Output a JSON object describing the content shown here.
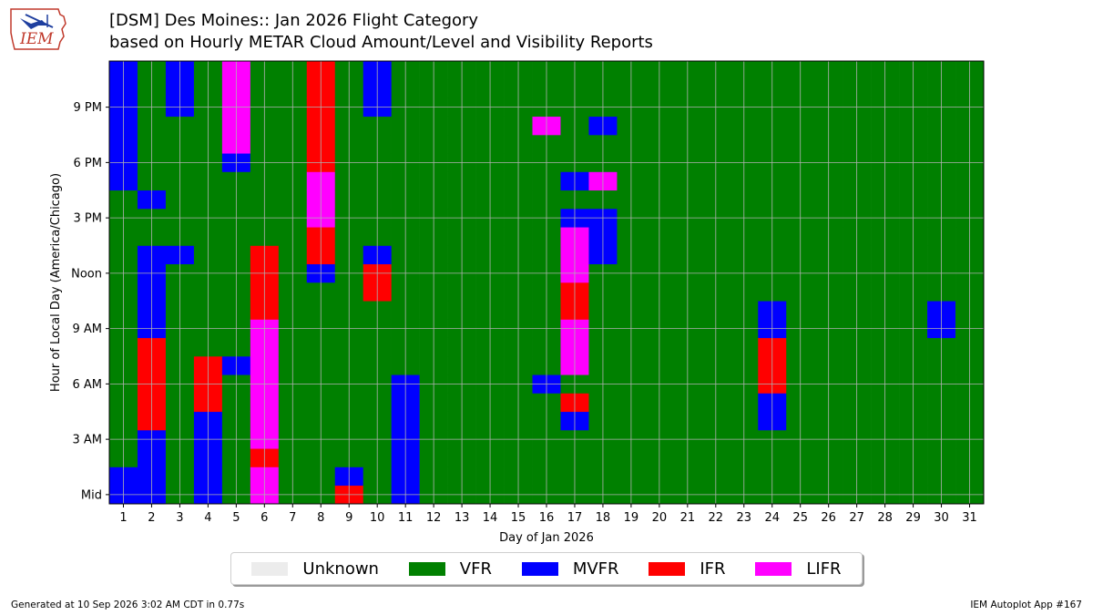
{
  "header": {
    "title_line1": "[DSM] Des Moines:: Jan 2026 Flight Category",
    "title_line2": "based on Hourly METAR Cloud Amount/Level and Visibility Reports",
    "logo_text": "IEM"
  },
  "footer": {
    "generated": "Generated at 10 Sep 2026 3:02 AM CDT in 0.77s",
    "app": "IEM Autoplot App #167"
  },
  "legend": [
    {
      "label": "Unknown",
      "color": "#ececec"
    },
    {
      "label": "VFR",
      "color": "#008000"
    },
    {
      "label": "MVFR",
      "color": "#0000ff"
    },
    {
      "label": "IFR",
      "color": "#ff0000"
    },
    {
      "label": "LIFR",
      "color": "#ff00ff"
    }
  ],
  "chart_data": {
    "type": "heatmap",
    "xlabel": "Day of Jan 2026",
    "ylabel": "Hour of Local Day (America/Chicago)",
    "x": [
      1,
      2,
      3,
      4,
      5,
      6,
      7,
      8,
      9,
      10,
      11,
      12,
      13,
      14,
      15,
      16,
      17,
      18,
      19,
      20,
      21,
      22,
      23,
      24,
      25,
      26,
      27,
      28,
      29,
      30,
      31
    ],
    "xlim": [
      0.5,
      31.5
    ],
    "ylim": [
      -0.5,
      23.5
    ],
    "y_ticks": [
      {
        "hour": 0,
        "label": "Mid"
      },
      {
        "hour": 3,
        "label": "3 AM"
      },
      {
        "hour": 6,
        "label": "6 AM"
      },
      {
        "hour": 9,
        "label": "9 AM"
      },
      {
        "hour": 12,
        "label": "Noon"
      },
      {
        "hour": 15,
        "label": "3 PM"
      },
      {
        "hour": 18,
        "label": "6 PM"
      },
      {
        "hour": 21,
        "label": "9 PM"
      }
    ],
    "grid": true,
    "default_category": "VFR",
    "categories": [
      "Unknown",
      "VFR",
      "MVFR",
      "IFR",
      "LIFR"
    ],
    "non_vfr_cells": [
      {
        "day": 1,
        "hours": [
          0,
          1,
          17,
          18,
          19,
          20,
          21,
          22,
          23
        ],
        "category": "MVFR"
      },
      {
        "day": 2,
        "hours": [
          0,
          1,
          2,
          3,
          9,
          10,
          11,
          12,
          13,
          16
        ],
        "category": "MVFR"
      },
      {
        "day": 2,
        "hours": [
          4,
          5,
          6,
          7,
          8
        ],
        "category": "IFR"
      },
      {
        "day": 3,
        "hours": [
          13,
          21,
          22,
          23
        ],
        "category": "MVFR"
      },
      {
        "day": 4,
        "hours": [
          0,
          1,
          2,
          3,
          4
        ],
        "category": "MVFR"
      },
      {
        "day": 4,
        "hours": [
          5,
          6,
          7
        ],
        "category": "IFR"
      },
      {
        "day": 5,
        "hours": [
          7,
          18
        ],
        "category": "MVFR"
      },
      {
        "day": 5,
        "hours": [
          19,
          20,
          21,
          22,
          23
        ],
        "category": "LIFR"
      },
      {
        "day": 6,
        "hours": [
          0,
          1,
          3,
          4,
          5,
          6,
          7,
          8,
          9
        ],
        "category": "LIFR"
      },
      {
        "day": 6,
        "hours": [
          2,
          10,
          11,
          12,
          13
        ],
        "category": "IFR"
      },
      {
        "day": 8,
        "hours": [
          12
        ],
        "category": "MVFR"
      },
      {
        "day": 8,
        "hours": [
          13,
          14,
          18,
          19,
          20,
          21,
          22,
          23
        ],
        "category": "IFR"
      },
      {
        "day": 8,
        "hours": [
          15,
          16,
          17
        ],
        "category": "LIFR"
      },
      {
        "day": 9,
        "hours": [
          0
        ],
        "category": "IFR"
      },
      {
        "day": 9,
        "hours": [
          1
        ],
        "category": "MVFR"
      },
      {
        "day": 10,
        "hours": [
          11,
          12
        ],
        "category": "IFR"
      },
      {
        "day": 10,
        "hours": [
          13,
          21,
          22,
          23
        ],
        "category": "MVFR"
      },
      {
        "day": 11,
        "hours": [
          0,
          1,
          2,
          3,
          4,
          5,
          6
        ],
        "category": "MVFR"
      },
      {
        "day": 16,
        "hours": [
          6
        ],
        "category": "MVFR"
      },
      {
        "day": 16,
        "hours": [
          20
        ],
        "category": "LIFR"
      },
      {
        "day": 17,
        "hours": [
          4,
          15,
          17
        ],
        "category": "MVFR"
      },
      {
        "day": 17,
        "hours": [
          5,
          10,
          11
        ],
        "category": "IFR"
      },
      {
        "day": 17,
        "hours": [
          7,
          8,
          9,
          12,
          13,
          14
        ],
        "category": "LIFR"
      },
      {
        "day": 18,
        "hours": [
          13,
          14,
          15,
          20
        ],
        "category": "MVFR"
      },
      {
        "day": 18,
        "hours": [
          17
        ],
        "category": "LIFR"
      },
      {
        "day": 24,
        "hours": [
          4,
          5,
          9,
          10
        ],
        "category": "MVFR"
      },
      {
        "day": 24,
        "hours": [
          6,
          7,
          8
        ],
        "category": "IFR"
      },
      {
        "day": 30,
        "hours": [
          9,
          10
        ],
        "category": "MVFR"
      }
    ]
  }
}
